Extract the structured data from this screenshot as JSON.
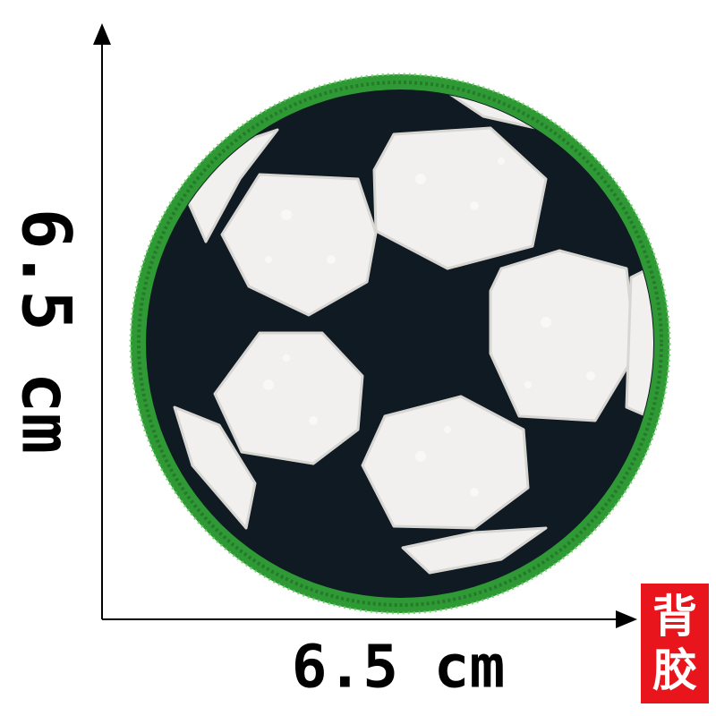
{
  "dimensions": {
    "height_label": "6.5 cm",
    "width_label": "6.5 cm"
  },
  "badge": {
    "line1": "背",
    "line2": "胶",
    "color": "#e8161c"
  },
  "patch": {
    "subject": "soccer-ball",
    "border_color": "#2f9a35",
    "panel_dark_color": "#0f1a22",
    "panel_light_color": "#f2f0ee"
  }
}
